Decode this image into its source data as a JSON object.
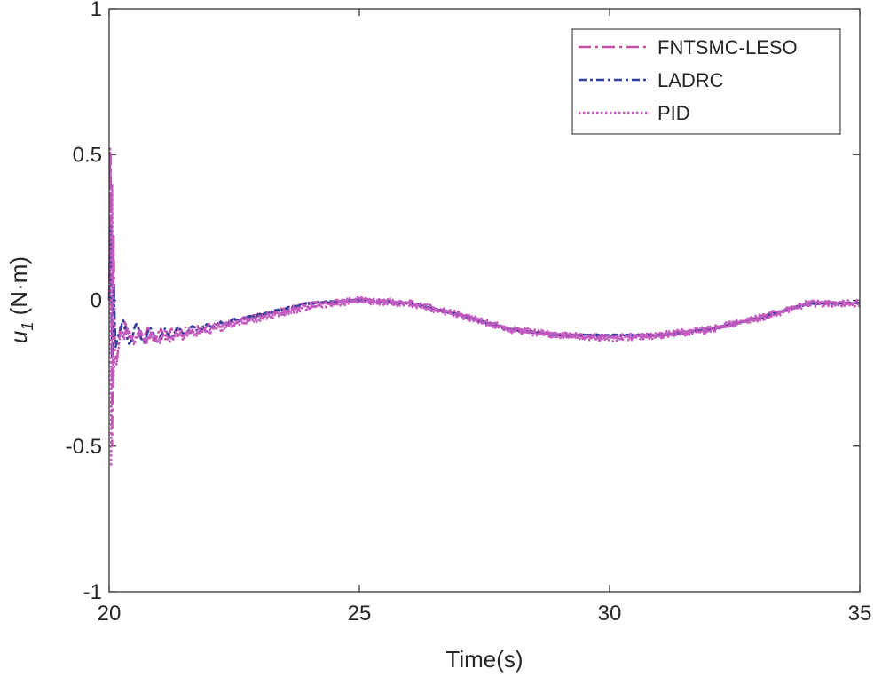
{
  "chart_data": {
    "type": "line",
    "xlabel": "Time(s)",
    "ylabel_main": "u",
    "ylabel_sub": "1",
    "ylabel_unit": " (N·m)",
    "xlim": [
      20,
      35
    ],
    "ylim": [
      -1,
      1
    ],
    "x_ticks": [
      {
        "value": 20,
        "label": "20"
      },
      {
        "value": 25,
        "label": "25"
      },
      {
        "value": 30,
        "label": "30"
      },
      {
        "value": 35,
        "label": "35"
      }
    ],
    "y_ticks": [
      {
        "value": -1,
        "label": "-1"
      },
      {
        "value": -0.5,
        "label": "-0.5"
      },
      {
        "value": 0,
        "label": "0"
      },
      {
        "value": 0.5,
        "label": "0.5"
      },
      {
        "value": 1,
        "label": "1"
      }
    ],
    "grid": false,
    "legend_position": "top-right",
    "series": [
      {
        "name": "FNTSMC-LESO",
        "color": "#c74fa6",
        "dash": "dashdot-long",
        "initial_transient": {
          "x": [
            20.0,
            20.03,
            20.06,
            20.09,
            20.12,
            20.16,
            20.22,
            20.3
          ],
          "y": [
            0.0,
            0.5,
            -0.5,
            0.22,
            -0.19,
            -0.2,
            -0.09,
            -0.1
          ]
        },
        "damped_oscillation": {
          "amplitude": 0.035,
          "decay": 0.9,
          "frequency_hz": 4.2,
          "start": 20.25
        },
        "baseline": {
          "x": [
            20.3,
            21.0,
            22.0,
            23.0,
            24.0,
            25.0,
            26.0,
            27.0,
            28.0,
            29.0,
            30.0,
            31.0,
            32.0,
            33.0,
            34.0,
            35.0
          ],
          "y": [
            -0.11,
            -0.12,
            -0.09,
            -0.05,
            -0.01,
            0.0,
            -0.01,
            -0.05,
            -0.1,
            -0.12,
            -0.12,
            -0.12,
            -0.1,
            -0.06,
            -0.01,
            -0.01
          ]
        },
        "noise": 0.004
      },
      {
        "name": "LADRC",
        "color": "#2e3f9e",
        "dash": "dashdot",
        "initial_transient": {
          "x": [
            20.0,
            20.03,
            20.06,
            20.09,
            20.13,
            20.18,
            20.25
          ],
          "y": [
            0.0,
            0.25,
            -0.2,
            0.05,
            -0.16,
            -0.12,
            -0.09
          ]
        },
        "damped_oscillation": {
          "amplitude": 0.045,
          "decay": 1.0,
          "frequency_hz": 3.6,
          "start": 20.2
        },
        "baseline": {
          "x": [
            20.25,
            21.0,
            22.0,
            23.0,
            24.0,
            25.0,
            26.0,
            27.0,
            28.0,
            29.0,
            30.0,
            31.0,
            32.0,
            33.0,
            34.0,
            35.0
          ],
          "y": [
            -0.11,
            -0.12,
            -0.09,
            -0.05,
            -0.01,
            0.0,
            -0.01,
            -0.05,
            -0.1,
            -0.12,
            -0.12,
            -0.12,
            -0.1,
            -0.06,
            -0.01,
            -0.01
          ]
        },
        "noise": 0.003
      },
      {
        "name": "PID",
        "color": "#c35ac0",
        "dash": "dotted",
        "initial_transient": {
          "x": [
            20.0,
            20.02,
            20.04,
            20.06,
            20.08,
            20.11,
            20.15,
            20.22
          ],
          "y": [
            0.0,
            0.52,
            -0.57,
            0.4,
            -0.3,
            -0.2,
            -0.22,
            -0.12
          ]
        },
        "damped_oscillation": {
          "amplitude": 0.02,
          "decay": 0.8,
          "frequency_hz": 4.0,
          "start": 20.3
        },
        "baseline": {
          "x": [
            20.22,
            21.0,
            22.0,
            23.0,
            24.0,
            25.0,
            26.0,
            27.0,
            28.0,
            29.0,
            30.0,
            31.0,
            32.0,
            33.0,
            34.0,
            35.0
          ],
          "y": [
            -0.12,
            -0.13,
            -0.1,
            -0.06,
            -0.02,
            0.0,
            -0.01,
            -0.05,
            -0.1,
            -0.12,
            -0.13,
            -0.12,
            -0.1,
            -0.06,
            -0.01,
            -0.01
          ]
        },
        "noise": 0.012
      }
    ]
  }
}
